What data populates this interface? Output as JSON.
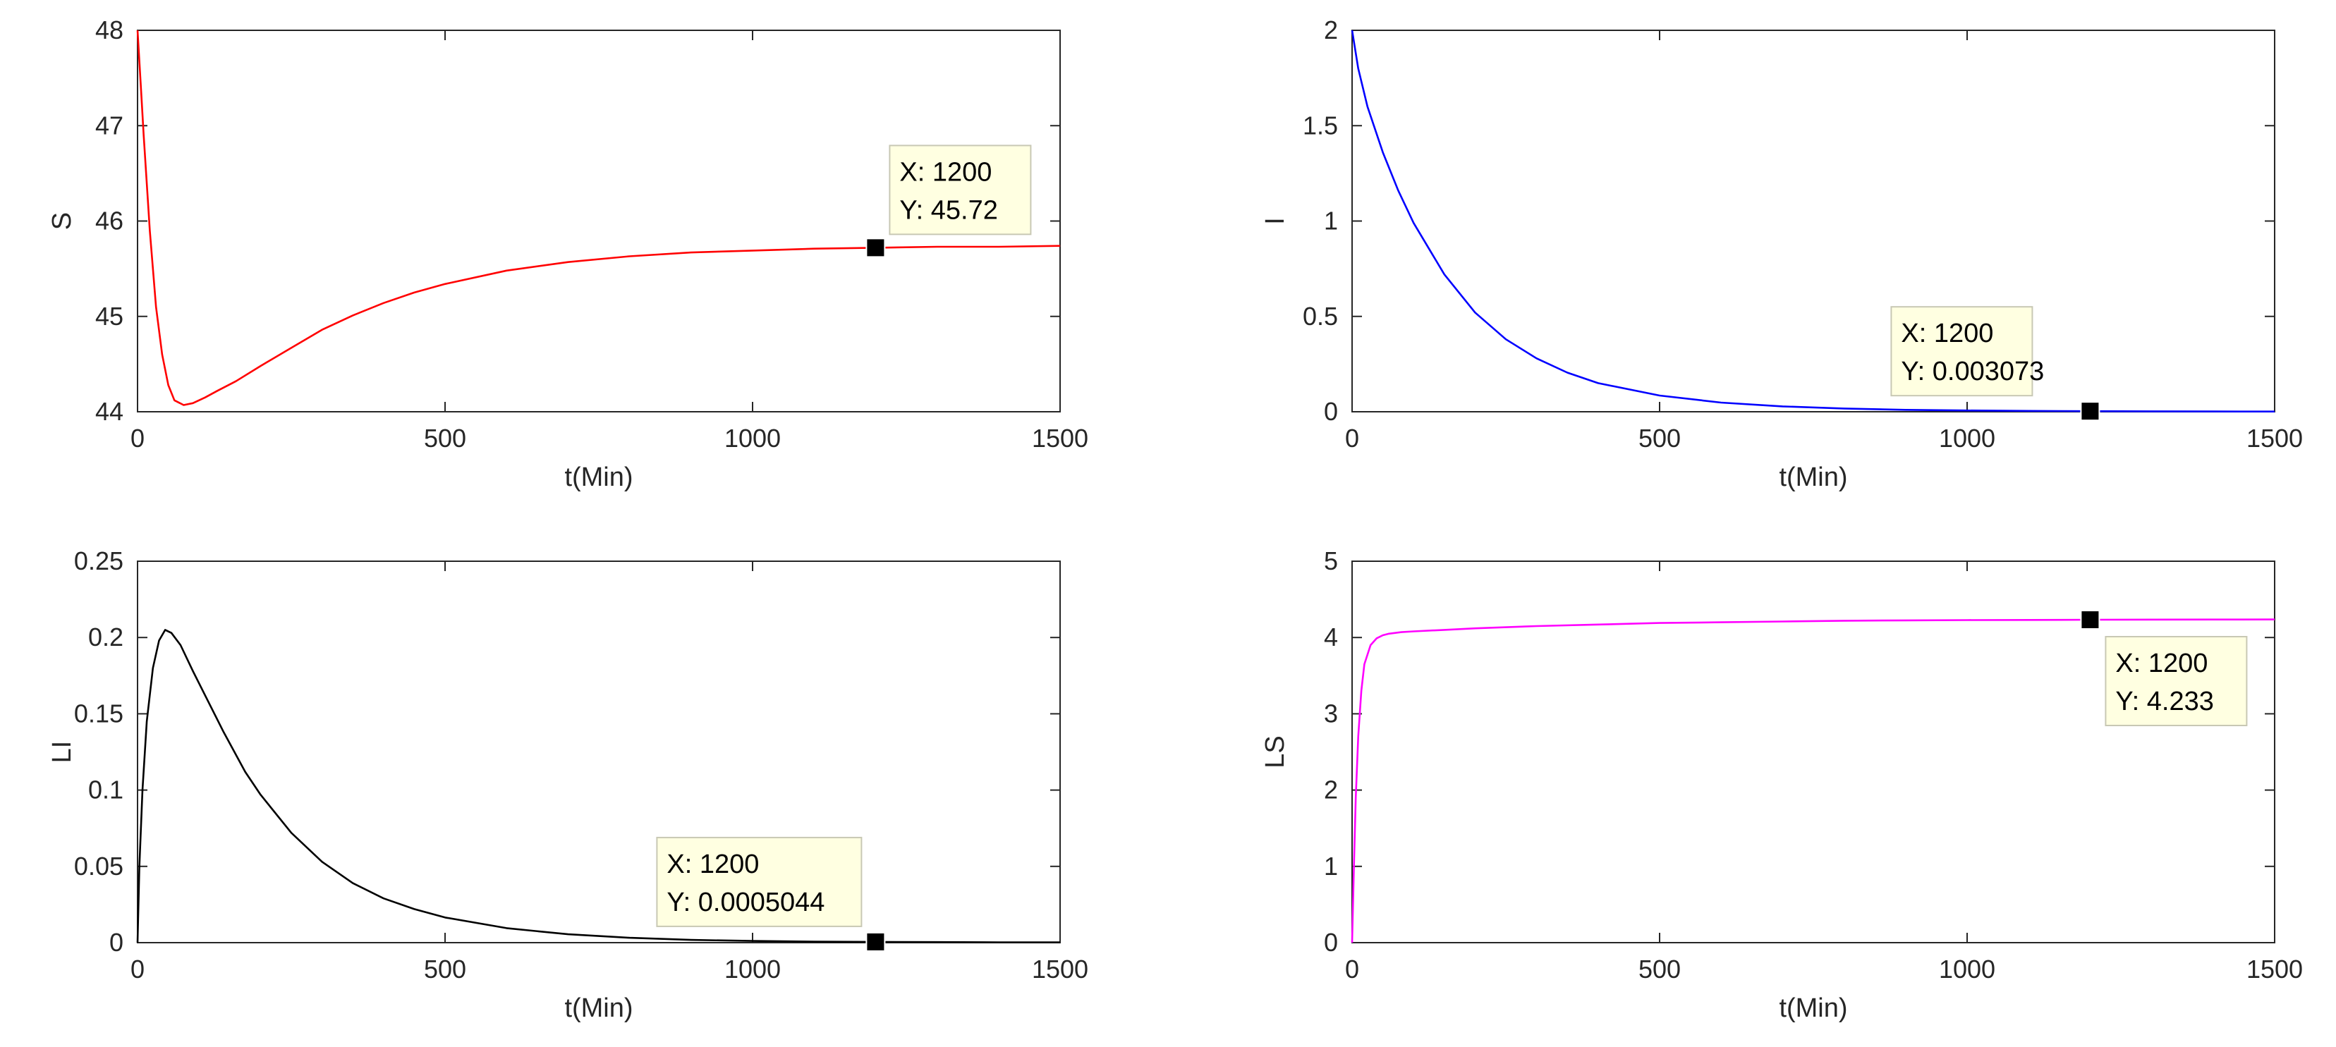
{
  "chart_data": [
    {
      "id": "S",
      "type": "line",
      "color": "#ff0000",
      "xlabel": "t(Min)",
      "ylabel": "S",
      "xlim": [
        0,
        1500
      ],
      "ylim": [
        44,
        48
      ],
      "xticks": [
        0,
        500,
        1000,
        1500
      ],
      "yticks": [
        44,
        45,
        46,
        47,
        48
      ],
      "series": [
        {
          "name": "S",
          "x": [
            0,
            5,
            10,
            20,
            30,
            40,
            50,
            60,
            75,
            90,
            110,
            130,
            160,
            200,
            250,
            300,
            350,
            400,
            450,
            500,
            600,
            700,
            800,
            900,
            1000,
            1100,
            1200,
            1300,
            1400,
            1500
          ],
          "y": [
            48.0,
            47.45,
            46.9,
            45.9,
            45.1,
            44.6,
            44.28,
            44.12,
            44.07,
            44.09,
            44.15,
            44.22,
            44.32,
            44.48,
            44.67,
            44.86,
            45.01,
            45.14,
            45.25,
            45.34,
            45.48,
            45.57,
            45.63,
            45.67,
            45.69,
            45.71,
            45.72,
            45.73,
            45.73,
            45.74
          ]
        }
      ],
      "datatip": {
        "x": 1200,
        "y": 45.72,
        "line1": "X: 1200",
        "line2": "Y: 45.72"
      }
    },
    {
      "id": "I",
      "type": "line",
      "color": "#0000ff",
      "xlabel": "t(Min)",
      "ylabel": "I",
      "xlim": [
        0,
        1500
      ],
      "ylim": [
        0,
        2
      ],
      "xticks": [
        0,
        500,
        1000,
        1500
      ],
      "yticks": [
        0,
        0.5,
        1,
        1.5,
        2
      ],
      "series": [
        {
          "name": "I",
          "x": [
            0,
            10,
            25,
            50,
            75,
            100,
            150,
            200,
            250,
            300,
            350,
            400,
            500,
            600,
            700,
            800,
            900,
            1000,
            1100,
            1200,
            1300,
            1400,
            1500
          ],
          "y": [
            2.0,
            1.8,
            1.6,
            1.36,
            1.16,
            0.99,
            0.72,
            0.52,
            0.38,
            0.28,
            0.205,
            0.15,
            0.085,
            0.048,
            0.028,
            0.017,
            0.01,
            0.0065,
            0.0045,
            0.003073,
            0.0022,
            0.0016,
            0.0012
          ]
        }
      ],
      "datatip": {
        "x": 1200,
        "y": 0.003073,
        "line1": "X: 1200",
        "line2": "Y: 0.003073"
      }
    },
    {
      "id": "LI",
      "type": "line",
      "color": "#000000",
      "xlabel": "t(Min)",
      "ylabel": "LI",
      "xlim": [
        0,
        1500
      ],
      "ylim": [
        0,
        0.25
      ],
      "xticks": [
        0,
        500,
        1000,
        1500
      ],
      "yticks": [
        0,
        0.05,
        0.1,
        0.15,
        0.2,
        0.25
      ],
      "series": [
        {
          "name": "LI",
          "x": [
            0,
            3,
            8,
            15,
            25,
            35,
            45,
            55,
            70,
            90,
            110,
            140,
            175,
            200,
            250,
            300,
            350,
            400,
            450,
            500,
            600,
            700,
            800,
            900,
            1000,
            1100,
            1200,
            1300,
            1400,
            1500
          ],
          "y": [
            0,
            0.05,
            0.1,
            0.145,
            0.18,
            0.198,
            0.205,
            0.203,
            0.195,
            0.178,
            0.162,
            0.138,
            0.112,
            0.097,
            0.072,
            0.053,
            0.039,
            0.029,
            0.022,
            0.0165,
            0.0095,
            0.0055,
            0.0032,
            0.0018,
            0.0011,
            0.0007,
            0.0005044,
            0.00035,
            0.00025,
            0.00018
          ]
        }
      ],
      "datatip": {
        "x": 1200,
        "y": 0.0005044,
        "line1": "X: 1200",
        "line2": "Y: 0.0005044"
      }
    },
    {
      "id": "LS",
      "type": "line",
      "color": "#ff00ff",
      "xlabel": "t(Min)",
      "ylabel": "LS",
      "xlim": [
        0,
        1500
      ],
      "ylim": [
        0,
        5
      ],
      "xticks": [
        0,
        500,
        1000,
        1500
      ],
      "yticks": [
        0,
        1,
        2,
        3,
        4,
        5
      ],
      "series": [
        {
          "name": "LS",
          "x": [
            0,
            3,
            6,
            10,
            15,
            20,
            30,
            40,
            50,
            60,
            80,
            100,
            150,
            200,
            300,
            400,
            500,
            600,
            700,
            800,
            900,
            1000,
            1100,
            1200,
            1300,
            1400,
            1500
          ],
          "y": [
            0,
            1.0,
            1.9,
            2.7,
            3.3,
            3.65,
            3.9,
            3.99,
            4.03,
            4.05,
            4.07,
            4.08,
            4.1,
            4.12,
            4.15,
            4.17,
            4.19,
            4.2,
            4.21,
            4.22,
            4.225,
            4.228,
            4.23,
            4.233,
            4.235,
            4.236,
            4.237
          ]
        }
      ],
      "datatip": {
        "x": 1200,
        "y": 4.233,
        "line1": "X: 1200",
        "line2": "Y: 4.233"
      }
    }
  ]
}
